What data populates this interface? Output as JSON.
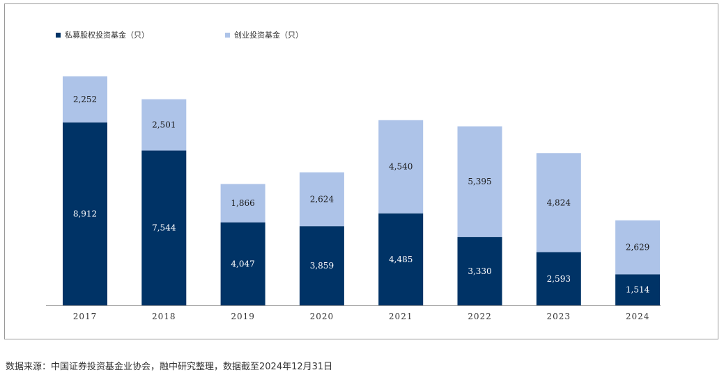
{
  "chart_data": {
    "type": "bar",
    "stacked": true,
    "categories": [
      "2017",
      "2018",
      "2019",
      "2020",
      "2021",
      "2022",
      "2023",
      "2024"
    ],
    "series": [
      {
        "name": "私募股权投资基金（只）",
        "color": "#003366",
        "values": [
          8912,
          7544,
          4047,
          3859,
          4485,
          3330,
          2593,
          1514
        ],
        "labels": [
          "8,912",
          "7,544",
          "4,047",
          "3,859",
          "4,485",
          "3,330",
          "2,593",
          "1,514"
        ]
      },
      {
        "name": "创业投资基金（只）",
        "color": "#adc3e8",
        "values": [
          2252,
          2501,
          1866,
          2624,
          4540,
          5395,
          4824,
          2629
        ],
        "labels": [
          "2,252",
          "2,501",
          "1,866",
          "2,624",
          "4,540",
          "5,395",
          "4,824",
          "2,629"
        ]
      }
    ],
    "ylim": [
      0,
      12000
    ],
    "grid": false,
    "legend_position": "top-left"
  },
  "source_note": "数据来源：中国证券投资基金业协会，融中研究整理，数据截至2024年12月31日"
}
